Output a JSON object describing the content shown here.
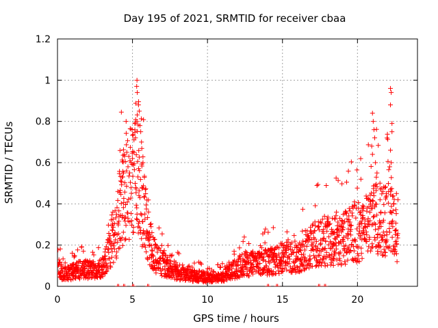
{
  "chart_data": {
    "type": "scatter",
    "title": "Day 195 of 2021, SRMTID for receiver cbaa",
    "xlabel": "GPS time / hours",
    "ylabel": "SRMTID / TECUs",
    "xlim": [
      0,
      24
    ],
    "ylim": [
      0,
      1.2
    ],
    "xticks": [
      0,
      5,
      10,
      15,
      20
    ],
    "yticks": [
      0,
      0.2,
      0.4,
      0.6,
      0.8,
      1,
      1.2
    ],
    "xtick_labels": [
      "0",
      "5",
      "10",
      "15",
      "20"
    ],
    "ytick_labels": [
      "0",
      "0.2",
      "0.4",
      "0.6",
      "0.8",
      "1",
      "1.2"
    ],
    "grid": true,
    "marker": "+",
    "series_color": "#ff0000",
    "envelope": [
      [
        0.0,
        0.09
      ],
      [
        0.5,
        0.06
      ],
      [
        1.0,
        0.07
      ],
      [
        1.5,
        0.08
      ],
      [
        2.0,
        0.08
      ],
      [
        2.5,
        0.08
      ],
      [
        3.0,
        0.09
      ],
      [
        3.3,
        0.13
      ],
      [
        3.6,
        0.22
      ],
      [
        3.9,
        0.28
      ],
      [
        4.2,
        0.38
      ],
      [
        4.5,
        0.45
      ],
      [
        4.8,
        0.5
      ],
      [
        5.0,
        0.52
      ],
      [
        5.2,
        0.58
      ],
      [
        5.4,
        0.55
      ],
      [
        5.7,
        0.4
      ],
      [
        6.0,
        0.25
      ],
      [
        6.5,
        0.15
      ],
      [
        7.0,
        0.11
      ],
      [
        7.5,
        0.09
      ],
      [
        8.0,
        0.07
      ],
      [
        8.5,
        0.06
      ],
      [
        9.0,
        0.05
      ],
      [
        9.5,
        0.05
      ],
      [
        10.0,
        0.04
      ],
      [
        10.5,
        0.04
      ],
      [
        11.0,
        0.05
      ],
      [
        11.5,
        0.07
      ],
      [
        12.0,
        0.09
      ],
      [
        12.5,
        0.11
      ],
      [
        13.0,
        0.11
      ],
      [
        13.5,
        0.11
      ],
      [
        14.0,
        0.12
      ],
      [
        14.5,
        0.12
      ],
      [
        15.0,
        0.14
      ],
      [
        15.5,
        0.14
      ],
      [
        16.0,
        0.15
      ],
      [
        16.5,
        0.16
      ],
      [
        17.0,
        0.2
      ],
      [
        17.5,
        0.21
      ],
      [
        18.0,
        0.22
      ],
      [
        18.5,
        0.22
      ],
      [
        19.0,
        0.23
      ],
      [
        19.5,
        0.25
      ],
      [
        20.0,
        0.26
      ],
      [
        20.5,
        0.28
      ],
      [
        21.0,
        0.32
      ],
      [
        21.5,
        0.32
      ],
      [
        22.0,
        0.33
      ],
      [
        22.5,
        0.27
      ],
      [
        22.7,
        0.25
      ]
    ],
    "spikes": [
      [
        5.3,
        1.0
      ],
      [
        5.28,
        0.97
      ],
      [
        5.32,
        0.94
      ],
      [
        5.4,
        0.88
      ],
      [
        5.45,
        0.85
      ],
      [
        5.3,
        0.8
      ],
      [
        5.5,
        0.78
      ],
      [
        5.55,
        0.75
      ],
      [
        5.2,
        0.72
      ],
      [
        5.6,
        0.7
      ],
      [
        5.1,
        0.65
      ],
      [
        5.0,
        0.62
      ],
      [
        4.9,
        0.6
      ],
      [
        4.7,
        0.58
      ],
      [
        4.6,
        0.56
      ],
      [
        4.4,
        0.55
      ],
      [
        4.3,
        0.53
      ],
      [
        5.7,
        0.6
      ],
      [
        21.0,
        0.84
      ],
      [
        21.05,
        0.8
      ],
      [
        21.1,
        0.76
      ],
      [
        21.15,
        0.72
      ],
      [
        20.95,
        0.68
      ],
      [
        21.0,
        0.64
      ],
      [
        21.3,
        0.55
      ],
      [
        21.5,
        0.5
      ],
      [
        22.2,
        0.96
      ],
      [
        22.25,
        0.94
      ],
      [
        22.2,
        0.88
      ],
      [
        22.3,
        0.79
      ],
      [
        22.3,
        0.75
      ],
      [
        22.2,
        0.66
      ],
      [
        22.25,
        0.6
      ],
      [
        22.15,
        0.58
      ],
      [
        22.6,
        0.45
      ],
      [
        22.7,
        0.42
      ],
      [
        21.7,
        0.46
      ],
      [
        21.2,
        0.6
      ],
      [
        19.8,
        0.41
      ],
      [
        20.3,
        0.38
      ],
      [
        18.6,
        0.36
      ],
      [
        17.8,
        0.34
      ]
    ],
    "zero_marks": [
      4.0,
      4.4,
      5.0,
      6.0,
      14.0,
      14.6,
      17.4,
      17.8
    ]
  }
}
